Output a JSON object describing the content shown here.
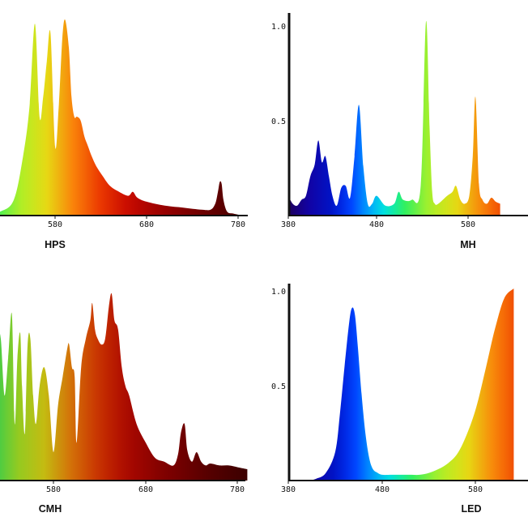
{
  "chart_data": [
    {
      "id": "hps",
      "type": "area",
      "title": "HPS",
      "x_ticks": [
        580,
        680,
        780
      ],
      "y_ticks": [],
      "xlim": [
        500,
        790
      ],
      "ylim": [
        0,
        1.0
      ],
      "series": [
        {
          "x": [
            500,
            520,
            535,
            545,
            552,
            558,
            563,
            567,
            571,
            575,
            580,
            584,
            588,
            591,
            595,
            598,
            601,
            604,
            608,
            612,
            616,
            620,
            625,
            632,
            640,
            650,
            660,
            665,
            670,
            680,
            700,
            720,
            740,
            750,
            755,
            758,
            760,
            762,
            764,
            768,
            775,
            785
          ],
          "values": [
            0.0,
            0.02,
            0.08,
            0.3,
            0.55,
            0.97,
            0.5,
            0.6,
            0.78,
            0.92,
            0.35,
            0.55,
            0.9,
            0.99,
            0.85,
            0.6,
            0.5,
            0.5,
            0.48,
            0.4,
            0.35,
            0.3,
            0.25,
            0.2,
            0.15,
            0.12,
            0.1,
            0.12,
            0.09,
            0.07,
            0.05,
            0.04,
            0.03,
            0.03,
            0.06,
            0.12,
            0.17,
            0.16,
            0.08,
            0.02,
            0.01,
            0.0
          ]
        }
      ]
    },
    {
      "id": "mh",
      "type": "area",
      "title": "MH",
      "x_ticks": [
        380,
        480,
        580
      ],
      "y_ticks": [
        0.5,
        1.0
      ],
      "xlim": [
        380,
        620
      ],
      "ylim": [
        0,
        1.0
      ],
      "series": [
        {
          "x": [
            380,
            385,
            390,
            395,
            400,
            405,
            410,
            414,
            418,
            422,
            426,
            430,
            435,
            440,
            445,
            450,
            455,
            460,
            465,
            470,
            475,
            480,
            490,
            500,
            505,
            510,
            520,
            530,
            536,
            540,
            543,
            546,
            550,
            560,
            566,
            570,
            575,
            580,
            585,
            589,
            592,
            596,
            600,
            605,
            610,
            615,
            620
          ],
          "values": [
            0.1,
            0.06,
            0.05,
            0.08,
            0.1,
            0.2,
            0.26,
            0.38,
            0.27,
            0.3,
            0.2,
            0.1,
            0.05,
            0.14,
            0.15,
            0.09,
            0.3,
            0.56,
            0.25,
            0.06,
            0.06,
            0.1,
            0.05,
            0.06,
            0.12,
            0.08,
            0.08,
            0.15,
            0.98,
            0.45,
            0.12,
            0.06,
            0.06,
            0.1,
            0.12,
            0.15,
            0.08,
            0.06,
            0.1,
            0.3,
            0.6,
            0.16,
            0.08,
            0.06,
            0.09,
            0.07,
            0.06
          ]
        }
      ]
    },
    {
      "id": "cmh",
      "type": "area",
      "title": "CMH",
      "x_ticks": [
        580,
        680,
        780
      ],
      "y_ticks": [],
      "xlim": [
        515,
        790
      ],
      "ylim": [
        0,
        1.0
      ],
      "series": [
        {
          "x": [
            515,
            520,
            523,
            527,
            531,
            535,
            538,
            541,
            544,
            546,
            549,
            552,
            555,
            558,
            561,
            565,
            570,
            575,
            580,
            585,
            590,
            595,
            597,
            600,
            603,
            605,
            610,
            615,
            620,
            622,
            625,
            628,
            632,
            636,
            640,
            643,
            646,
            650,
            654,
            658,
            662,
            670,
            680,
            690,
            700,
            710,
            715,
            718,
            722,
            725,
            730,
            735,
            740,
            745,
            750,
            760,
            770,
            780,
            790
          ],
          "values": [
            0.3,
            0.72,
            0.75,
            0.45,
            0.65,
            0.88,
            0.3,
            0.65,
            0.78,
            0.5,
            0.25,
            0.72,
            0.75,
            0.45,
            0.3,
            0.5,
            0.6,
            0.45,
            0.15,
            0.4,
            0.55,
            0.7,
            0.72,
            0.6,
            0.55,
            0.2,
            0.6,
            0.75,
            0.85,
            0.94,
            0.8,
            0.75,
            0.72,
            0.75,
            0.92,
            0.99,
            0.85,
            0.8,
            0.6,
            0.5,
            0.45,
            0.3,
            0.2,
            0.12,
            0.1,
            0.08,
            0.14,
            0.25,
            0.3,
            0.16,
            0.1,
            0.15,
            0.1,
            0.08,
            0.09,
            0.08,
            0.08,
            0.07,
            0.06
          ]
        }
      ]
    },
    {
      "id": "led",
      "type": "area",
      "title": "LED",
      "x_ticks": [
        380,
        480,
        580
      ],
      "y_ticks": [
        0.5,
        1.0
      ],
      "xlim": [
        380,
        620
      ],
      "ylim": [
        0,
        1.0
      ],
      "series": [
        {
          "x": [
            380,
            400,
            410,
            420,
            430,
            435,
            440,
            445,
            448,
            451,
            454,
            458,
            462,
            466,
            470,
            475,
            480,
            490,
            500,
            510,
            520,
            530,
            540,
            550,
            560,
            570,
            580,
            590,
            600,
            610,
            620
          ],
          "values": [
            0.0,
            0.0,
            0.01,
            0.04,
            0.15,
            0.35,
            0.6,
            0.83,
            0.9,
            0.86,
            0.7,
            0.45,
            0.25,
            0.12,
            0.06,
            0.04,
            0.03,
            0.03,
            0.03,
            0.03,
            0.03,
            0.04,
            0.06,
            0.09,
            0.14,
            0.24,
            0.38,
            0.58,
            0.79,
            0.95,
            1.0
          ]
        }
      ]
    }
  ]
}
